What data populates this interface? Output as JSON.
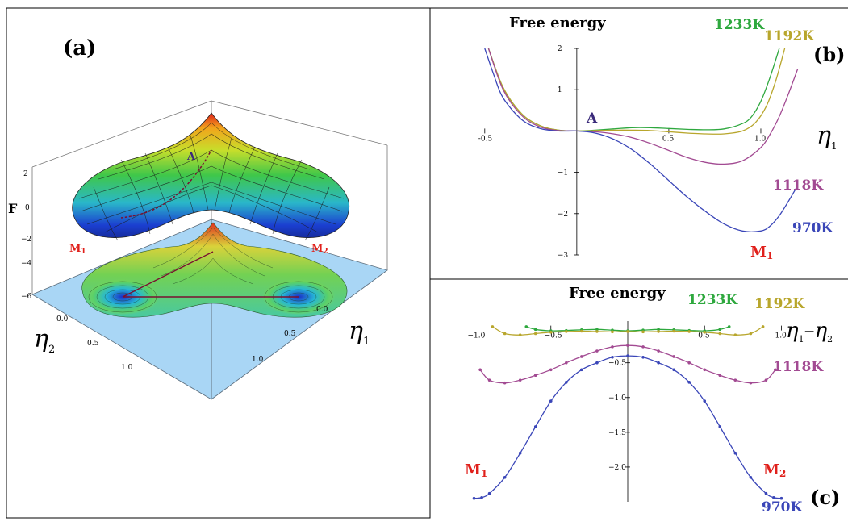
{
  "panel_a": {
    "label": "(a)",
    "z_axis_label": "F",
    "z_ticks": [
      "2",
      "0",
      "−2",
      "−4",
      "−6"
    ],
    "eta2_label": "η",
    "eta2_sub": "2",
    "eta2_ticks": [
      "0.0",
      "0.5",
      "1.0"
    ],
    "eta1_label": "η",
    "eta1_sub": "1",
    "eta1_ticks": [
      "0.0",
      "0.5",
      "1.0"
    ],
    "point_A": "A",
    "point_M1": "M",
    "point_M1_sub": "1",
    "point_M2": "M",
    "point_M2_sub": "2",
    "colors": {
      "floor": "#a9d6f5",
      "marker": "#e0201b",
      "path": "#7a1030"
    }
  },
  "chart_data": [
    {
      "type": "line",
      "panel_label": "(b)",
      "title": "Free energy",
      "xlabel": "η",
      "xlabel_sub": "1",
      "ylabel": "",
      "xlim": [
        -0.6,
        1.25
      ],
      "ylim": [
        -3,
        2
      ],
      "x_ticks": [
        -0.5,
        0.5,
        1.0
      ],
      "x_tick_labels": [
        "-0.5",
        "0.5",
        "1.0"
      ],
      "y_ticks": [
        2,
        1,
        -1,
        -2,
        -3
      ],
      "y_tick_labels": [
        "2",
        "1",
        "−1",
        "−2",
        "−3"
      ],
      "point_label_A": "A",
      "point_label_M1": "M",
      "point_label_M1_sub": "1",
      "series": [
        {
          "name": "1233K",
          "color": "#2ea83e",
          "x": [
            -0.48,
            -0.4,
            -0.3,
            -0.2,
            -0.1,
            0,
            0.1,
            0.2,
            0.3,
            0.4,
            0.5,
            0.6,
            0.7,
            0.8,
            0.9,
            0.95,
            1.0,
            1.05,
            1.1
          ],
          "y": [
            2.0,
            1.05,
            0.42,
            0.13,
            0.02,
            0,
            0.02,
            0.05,
            0.08,
            0.08,
            0.06,
            0.04,
            0.03,
            0.05,
            0.18,
            0.35,
            0.72,
            1.3,
            2.0
          ]
        },
        {
          "name": "1192K",
          "color": "#b8a62c",
          "x": [
            -0.48,
            -0.4,
            -0.3,
            -0.2,
            -0.1,
            0,
            0.1,
            0.2,
            0.3,
            0.4,
            0.5,
            0.6,
            0.7,
            0.8,
            0.9,
            0.97,
            1.03,
            1.08,
            1.13
          ],
          "y": [
            2.0,
            1.05,
            0.42,
            0.13,
            0.02,
            0,
            0.01,
            0.02,
            0.02,
            0.01,
            -0.02,
            -0.05,
            -0.07,
            -0.07,
            0.0,
            0.2,
            0.6,
            1.2,
            2.0
          ]
        },
        {
          "name": "1118K",
          "color": "#a24a92",
          "x": [
            -0.48,
            -0.4,
            -0.3,
            -0.2,
            -0.1,
            0,
            0.1,
            0.2,
            0.3,
            0.4,
            0.5,
            0.6,
            0.7,
            0.8,
            0.9,
            1.0,
            1.05,
            1.1,
            1.15,
            1.2
          ],
          "y": [
            2.0,
            1.0,
            0.38,
            0.1,
            0.01,
            0,
            -0.02,
            -0.07,
            -0.16,
            -0.3,
            -0.47,
            -0.64,
            -0.76,
            -0.8,
            -0.72,
            -0.4,
            -0.08,
            0.35,
            0.9,
            1.5
          ]
        },
        {
          "name": "970K",
          "color": "#3a46b8",
          "x": [
            -0.5,
            -0.45,
            -0.4,
            -0.3,
            -0.2,
            -0.1,
            0,
            0.1,
            0.2,
            0.3,
            0.4,
            0.5,
            0.6,
            0.7,
            0.8,
            0.9,
            1.0,
            1.05,
            1.1,
            1.15,
            1.2
          ],
          "y": [
            2.0,
            1.35,
            0.8,
            0.28,
            0.06,
            0.0,
            0,
            -0.05,
            -0.2,
            -0.45,
            -0.8,
            -1.2,
            -1.6,
            -1.95,
            -2.25,
            -2.42,
            -2.42,
            -2.3,
            -2.05,
            -1.7,
            -1.32
          ]
        }
      ]
    },
    {
      "type": "line",
      "panel_label": "(c)",
      "title": "Free energy",
      "xlabel": "η",
      "xlabel_sub": "1",
      "xlabel_mid": "–",
      "xlabel2": "η",
      "xlabel2_sub": "2",
      "ylabel": "",
      "xlim": [
        -1.05,
        1.05
      ],
      "ylim": [
        -2.5,
        0.1
      ],
      "x_ticks": [
        -1.0,
        -0.5,
        0.5,
        1.0
      ],
      "x_tick_labels": [
        "−1.0",
        "−0.5",
        "0.5",
        "1.0"
      ],
      "y_ticks": [
        -0.5,
        -1.0,
        -1.5,
        -2.0
      ],
      "y_tick_labels": [
        "−0.5",
        "−1.0",
        "−1.5",
        "−2.0"
      ],
      "point_label_M1": "M",
      "point_label_M1_sub": "1",
      "point_label_M2": "M",
      "point_label_M2_sub": "2",
      "series": [
        {
          "name": "1233K",
          "color": "#2ea83e",
          "x": [
            -0.66,
            -0.6,
            -0.5,
            -0.4,
            -0.3,
            -0.2,
            -0.1,
            0,
            0.1,
            0.2,
            0.3,
            0.4,
            0.5,
            0.6,
            0.66
          ],
          "y": [
            0.02,
            -0.02,
            -0.04,
            -0.035,
            -0.025,
            -0.02,
            -0.03,
            -0.04,
            -0.03,
            -0.02,
            -0.025,
            -0.035,
            -0.04,
            -0.02,
            0.02
          ]
        },
        {
          "name": "1192K",
          "color": "#b8a62c",
          "x": [
            -0.88,
            -0.8,
            -0.7,
            -0.6,
            -0.5,
            -0.4,
            -0.3,
            -0.2,
            -0.1,
            0,
            0.1,
            0.2,
            0.3,
            0.4,
            0.5,
            0.6,
            0.7,
            0.8,
            0.88
          ],
          "y": [
            0.02,
            -0.08,
            -0.1,
            -0.08,
            -0.06,
            -0.05,
            -0.045,
            -0.05,
            -0.055,
            -0.05,
            -0.055,
            -0.05,
            -0.045,
            -0.05,
            -0.06,
            -0.08,
            -0.1,
            -0.08,
            0.02
          ]
        },
        {
          "name": "1118K",
          "color": "#a24a92",
          "x": [
            -0.96,
            -0.9,
            -0.8,
            -0.7,
            -0.6,
            -0.5,
            -0.4,
            -0.3,
            -0.2,
            -0.1,
            0,
            0.1,
            0.2,
            0.3,
            0.4,
            0.5,
            0.6,
            0.7,
            0.8,
            0.9,
            0.96
          ],
          "y": [
            -0.6,
            -0.75,
            -0.79,
            -0.75,
            -0.68,
            -0.6,
            -0.5,
            -0.41,
            -0.33,
            -0.27,
            -0.25,
            -0.27,
            -0.33,
            -0.41,
            -0.5,
            -0.6,
            -0.68,
            -0.75,
            -0.79,
            -0.75,
            -0.6
          ]
        },
        {
          "name": "970K",
          "color": "#3a46b8",
          "x": [
            -1.0,
            -0.95,
            -0.9,
            -0.8,
            -0.7,
            -0.6,
            -0.5,
            -0.4,
            -0.3,
            -0.2,
            -0.1,
            0,
            0.1,
            0.2,
            0.3,
            0.4,
            0.5,
            0.6,
            0.7,
            0.8,
            0.9,
            0.95,
            1.0
          ],
          "y": [
            -2.45,
            -2.44,
            -2.38,
            -2.15,
            -1.8,
            -1.42,
            -1.05,
            -0.78,
            -0.6,
            -0.5,
            -0.42,
            -0.4,
            -0.42,
            -0.5,
            -0.6,
            -0.78,
            -1.05,
            -1.42,
            -1.8,
            -2.15,
            -2.38,
            -2.44,
            -2.45
          ]
        }
      ]
    }
  ]
}
